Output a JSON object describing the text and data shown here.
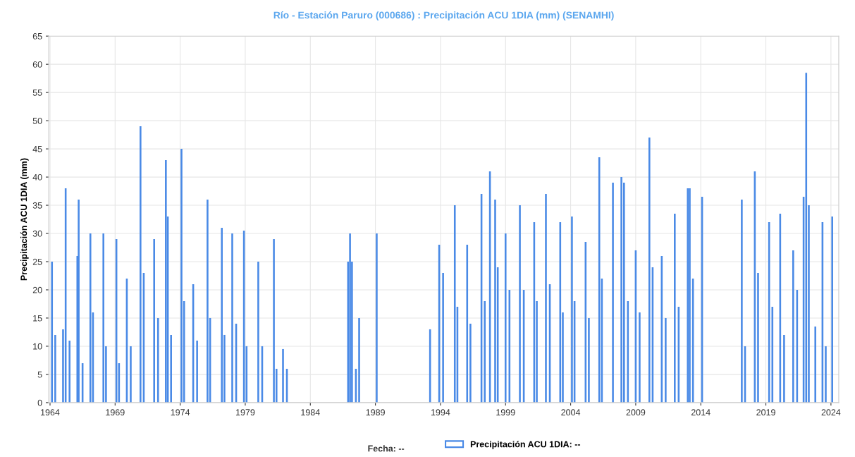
{
  "chart_data": {
    "type": "bar",
    "title": "Río - Estación Paruro (000686) : Precipitación ACU 1DIA (mm) (SENAMHI)",
    "ylabel": "Precipitación ACU 1DIA (mm)",
    "annotations": [
      "Fecha: --"
    ],
    "x": [
      1964.15,
      1964.4,
      1965.0,
      1965.2,
      1965.5,
      1966.1,
      1966.2,
      1966.5,
      1967.1,
      1967.3,
      1968.1,
      1968.3,
      1969.1,
      1969.3,
      1969.9,
      1970.2,
      1970.95,
      1971.2,
      1972.0,
      1972.3,
      1972.9,
      1973.05,
      1973.3,
      1974.1,
      1974.3,
      1975.0,
      1975.3,
      1976.1,
      1976.3,
      1977.2,
      1977.4,
      1978.0,
      1978.3,
      1978.9,
      1979.1,
      1980.0,
      1980.3,
      1981.2,
      1981.4,
      1981.9,
      1982.2,
      1986.9,
      1987.05,
      1987.2,
      1987.5,
      1987.75,
      1989.1,
      1993.2,
      1993.9,
      1994.2,
      1995.1,
      1995.3,
      1996.05,
      1996.3,
      1997.15,
      1997.4,
      1997.8,
      1998.2,
      1998.4,
      1999.0,
      1999.3,
      2000.1,
      2000.4,
      2001.2,
      2001.4,
      2002.1,
      2002.4,
      2003.2,
      2003.4,
      2004.1,
      2004.3,
      2005.15,
      2005.4,
      2006.2,
      2006.4,
      2007.25,
      2007.9,
      2008.1,
      2008.4,
      2009.0,
      2009.3,
      2010.05,
      2010.3,
      2011.0,
      2011.3,
      2012.0,
      2012.3,
      2013.0,
      2013.15,
      2013.4,
      2014.1,
      2017.15,
      2017.4,
      2018.15,
      2018.4,
      2019.25,
      2019.5,
      2020.1,
      2020.4,
      2021.1,
      2021.4,
      2021.9,
      2022.1,
      2022.3,
      2022.8,
      2023.35,
      2023.6,
      2024.1
    ],
    "series": [
      {
        "name": "Precipitación ACU 1DIA: --",
        "color": "#4a8ae6",
        "values": [
          25,
          12,
          13,
          38,
          11,
          26,
          36,
          7,
          30,
          16,
          30,
          10,
          29,
          7,
          22,
          10,
          49,
          23,
          29,
          15,
          43,
          33,
          12,
          45,
          18,
          21,
          11,
          36,
          15,
          31,
          12,
          30,
          14,
          30.5,
          10,
          25,
          10,
          29,
          6,
          9.5,
          6,
          25,
          30,
          25,
          6,
          15,
          30,
          13,
          28,
          23,
          35,
          17,
          28,
          14,
          37,
          18,
          41,
          36,
          24,
          30,
          20,
          35,
          20,
          32,
          18,
          37,
          21,
          32,
          16,
          33,
          18,
          28.5,
          15,
          43.5,
          22,
          39,
          40,
          39,
          18,
          27,
          16,
          47,
          24,
          26,
          15,
          33.5,
          17,
          38,
          38,
          22,
          36.5,
          36,
          10,
          41,
          23,
          32,
          17,
          33.5,
          12,
          27,
          20,
          36.5,
          58.5,
          35,
          13.5,
          32,
          10,
          33
        ]
      }
    ],
    "xlim": [
      1963.9,
      2024.6
    ],
    "xticks": [
      1964,
      1969,
      1974,
      1979,
      1984,
      1989,
      1994,
      1999,
      2004,
      2009,
      2014,
      2019,
      2024
    ],
    "ylim": [
      0,
      65
    ],
    "yticks": [
      0,
      5,
      10,
      15,
      20,
      25,
      30,
      35,
      40,
      45,
      50,
      55,
      60,
      65
    ],
    "grid": true,
    "legend": "bottom"
  }
}
